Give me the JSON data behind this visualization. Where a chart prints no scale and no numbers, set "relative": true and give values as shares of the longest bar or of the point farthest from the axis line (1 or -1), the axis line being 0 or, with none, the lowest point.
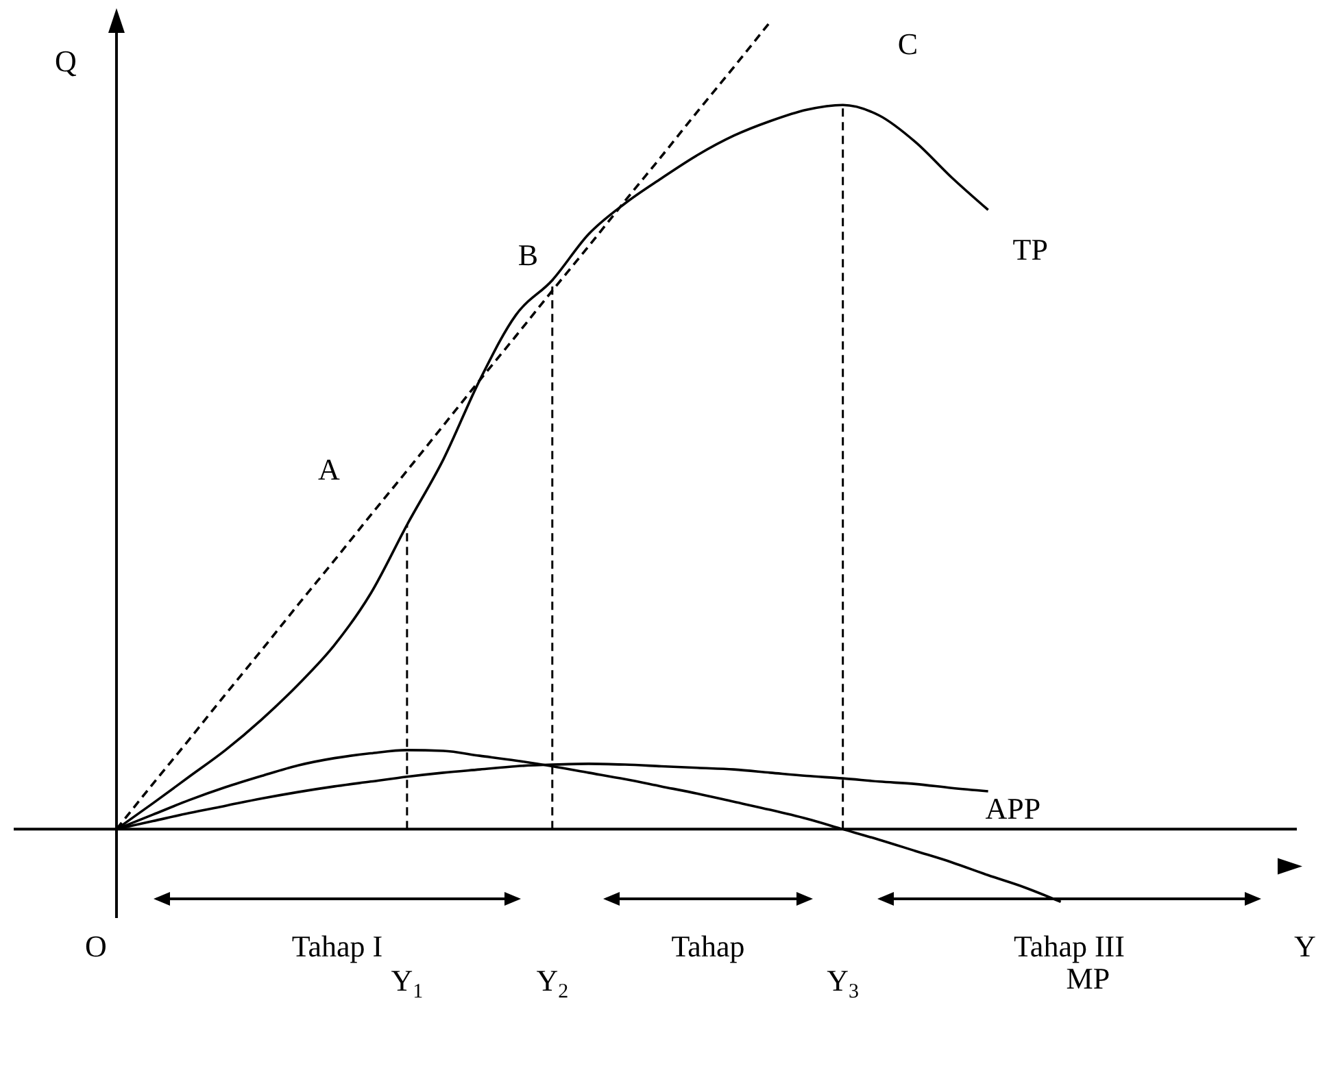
{
  "chart_data": {
    "type": "line",
    "relative": true,
    "xlabel": "Y",
    "ylabel": "Q",
    "legend": false,
    "marker": "none",
    "categories": [
      null,
      null,
      null,
      null,
      null,
      null,
      null,
      null,
      "Y$_{1}$",
      null,
      null,
      null,
      "Y$_{2}$",
      null,
      null,
      null,
      null,
      null,
      null,
      null,
      "Y$_{3}$",
      null,
      null,
      null,
      null,
      null,
      null,
      null,
      null,
      null,
      null,
      null,
      null
    ],
    "series": [
      {
        "name": "TP",
        "color": "#000000",
        "line_style": "solid",
        "values": [
          0,
          0.032,
          0.065,
          0.098,
          0.136,
          0.179,
          0.228,
          0.292,
          0.377,
          0.458,
          0.556,
          0.637,
          0.68,
          0.737,
          0.775,
          0.806,
          0.835,
          0.859,
          0.877,
          0.891,
          0.897,
          0.884,
          0.851,
          0.807,
          0.767,
          null,
          null,
          null,
          null,
          null,
          null,
          null,
          null
        ]
      },
      {
        "name": "APP",
        "color": "#000000",
        "line_style": "solid",
        "values": [
          0,
          0.01,
          0.02,
          0.029,
          0.038,
          0.046,
          0.053,
          0.059,
          0.065,
          0.07,
          0.074,
          0.078,
          0.08,
          0.081,
          0.08,
          0.078,
          0.076,
          0.074,
          0.07,
          0.066,
          0.063,
          0.059,
          0.056,
          0.051,
          0.047,
          null,
          null,
          null,
          null,
          null,
          null,
          null,
          null
        ]
      },
      {
        "name": "MP",
        "color": "#000000",
        "line_style": "solid",
        "values": [
          0,
          0.018,
          0.036,
          0.052,
          0.066,
          0.079,
          0.088,
          0.094,
          0.098,
          0.097,
          0.091,
          0.085,
          0.078,
          0.07,
          0.062,
          0.053,
          0.044,
          0.034,
          0.024,
          0.013,
          0,
          -0.013,
          -0.027,
          -0.041,
          -0.057,
          -0.072,
          -0.09,
          null,
          null,
          null,
          null,
          null,
          null
        ]
      },
      {
        "color": "#000000",
        "line_style": "dashed",
        "values": [
          0,
          0.056,
          0.111,
          0.167,
          0.222,
          0.278,
          0.333,
          0.389,
          0.444,
          0.5,
          0.556,
          0.611,
          0.667,
          0.722,
          0.778,
          0.833,
          0.889,
          0.944,
          1,
          null,
          null,
          null,
          null,
          null,
          null,
          null,
          null,
          null,
          null,
          null,
          null,
          null,
          null
        ]
      }
    ],
    "ref_lines": [
      {
        "axis": "x",
        "value": "Y$_{1}$",
        "line_style": "dashed",
        "color": "#000000"
      },
      {
        "axis": "x",
        "value": "Y$_{2}$",
        "line_style": "dashed",
        "color": "#000000"
      },
      {
        "axis": "x",
        "value": "Y$_{3}$",
        "line_style": "dashed",
        "color": "#000000"
      }
    ],
    "annotations": [
      {
        "text": "B",
        "x": "Y$_{2}$",
        "y": 0.68
      },
      {
        "text": "C",
        "x": "Y$_{3}$",
        "y": 0.897
      },
      "A",
      "O",
      "Tahap I",
      "Tahap",
      "Tahap III"
    ]
  }
}
